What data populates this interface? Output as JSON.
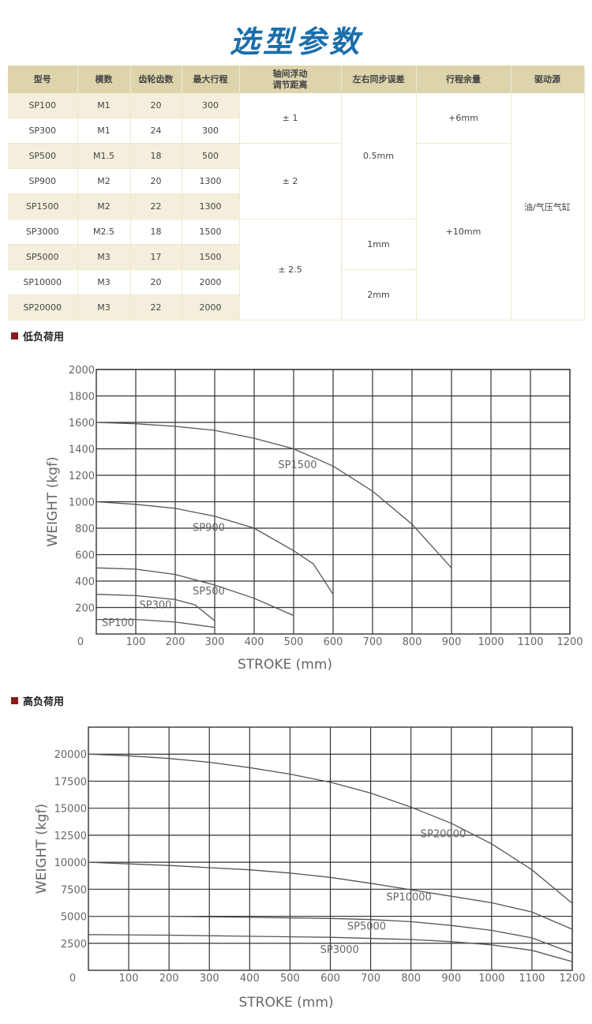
{
  "title": "选型参数",
  "table": {
    "headers": [
      "型号",
      "模数",
      "齿轮齿数",
      "最大行程",
      "轴间浮动\n调节距离",
      "左右同步误差",
      "行程余量",
      "驱动源"
    ],
    "rows": [
      [
        "SP100",
        "M1",
        "20",
        "300"
      ],
      [
        "SP300",
        "M1",
        "24",
        "300"
      ],
      [
        "SP500",
        "M1.5",
        "18",
        "500"
      ],
      [
        "SP900",
        "M2",
        "20",
        "1300"
      ],
      [
        "SP1500",
        "M2",
        "22",
        "1300"
      ],
      [
        "SP3000",
        "M2.5",
        "18",
        "1500"
      ],
      [
        "SP5000",
        "M3",
        "17",
        "1500"
      ],
      [
        "SP10000",
        "M3",
        "20",
        "2000"
      ],
      [
        "SP20000",
        "M3",
        "22",
        "2000"
      ]
    ],
    "float_adjust": [
      "± 1",
      "± 2",
      "± 2.5"
    ],
    "sync_error": [
      "0.5mm",
      "1mm",
      "2mm"
    ],
    "stroke_margin": [
      "+6mm",
      "+10mm"
    ],
    "drive": "油/气压气缸"
  },
  "sections": {
    "low": "低负荷用",
    "high": "高负荷用"
  },
  "colors": {
    "title": "#1b6fab",
    "header_bg": "#ddd4ac",
    "row_alt": "#f4efdc",
    "section_marker": "#8a1b1b"
  },
  "chart_data": [
    {
      "type": "line",
      "xlabel": "STROKE (mm)",
      "ylabel": "WEIGHT (kgf)",
      "xlim": [
        0,
        1200
      ],
      "ylim": [
        0,
        2000
      ],
      "xticks": [
        "0",
        "100",
        "200",
        "300",
        "400",
        "500",
        "600",
        "700",
        "800",
        "900",
        "1000",
        "1100",
        "1200"
      ],
      "yticks": [
        "200",
        "400",
        "600",
        "800",
        "1000",
        "1200",
        "1400",
        "1600",
        "1800",
        "2000"
      ],
      "grid": true,
      "series": [
        {
          "name": "SP1500",
          "x": [
            0,
            100,
            200,
            300,
            400,
            500,
            600,
            700,
            800,
            900
          ],
          "y": [
            1600,
            1590,
            1570,
            1540,
            1480,
            1400,
            1270,
            1080,
            830,
            500
          ]
        },
        {
          "name": "SP900",
          "x": [
            0,
            100,
            200,
            300,
            400,
            500,
            550,
            600
          ],
          "y": [
            1000,
            980,
            950,
            890,
            800,
            630,
            530,
            300
          ]
        },
        {
          "name": "SP500",
          "x": [
            0,
            100,
            200,
            300,
            400,
            500
          ],
          "y": [
            500,
            490,
            450,
            370,
            270,
            140
          ]
        },
        {
          "name": "SP300",
          "x": [
            0,
            100,
            200,
            250,
            300
          ],
          "y": [
            300,
            290,
            260,
            220,
            100
          ]
        },
        {
          "name": "SP100",
          "x": [
            0,
            100,
            200,
            300
          ],
          "y": [
            110,
            110,
            90,
            50
          ]
        }
      ]
    },
    {
      "type": "line",
      "xlabel": "STROKE (mm)",
      "ylabel": "WEIGHT (kgf)",
      "xlim": [
        0,
        1200
      ],
      "ylim": [
        0,
        22500
      ],
      "xticks": [
        "0",
        "100",
        "200",
        "300",
        "400",
        "500",
        "600",
        "700",
        "800",
        "900",
        "1000",
        "1100",
        "1200"
      ],
      "yticks": [
        "2500",
        "5000",
        "7500",
        "10000",
        "12500",
        "15000",
        "17500",
        "20000"
      ],
      "grid": true,
      "series": [
        {
          "name": "SP20000",
          "x": [
            0,
            100,
            200,
            300,
            400,
            500,
            600,
            700,
            800,
            900,
            1000,
            1100,
            1200
          ],
          "y": [
            20000,
            19850,
            19600,
            19250,
            18750,
            18150,
            17400,
            16400,
            15100,
            13600,
            11700,
            9300,
            6200
          ]
        },
        {
          "name": "SP10000",
          "x": [
            0,
            100,
            200,
            300,
            400,
            500,
            600,
            700,
            800,
            900,
            1000,
            1100,
            1200
          ],
          "y": [
            10000,
            9850,
            9700,
            9500,
            9300,
            9000,
            8600,
            8050,
            7450,
            6850,
            6250,
            5400,
            3800
          ]
        },
        {
          "name": "SP5000",
          "x": [
            0,
            200,
            400,
            600,
            700,
            800,
            900,
            1000,
            1100,
            1200
          ],
          "y": [
            5000,
            5000,
            4900,
            4800,
            4700,
            4500,
            4150,
            3700,
            3000,
            1600
          ]
        },
        {
          "name": "SP3000",
          "x": [
            0,
            200,
            400,
            600,
            800,
            900,
            1000,
            1100,
            1200
          ],
          "y": [
            3300,
            3250,
            3150,
            3050,
            2850,
            2650,
            2350,
            1850,
            800
          ]
        }
      ]
    }
  ]
}
